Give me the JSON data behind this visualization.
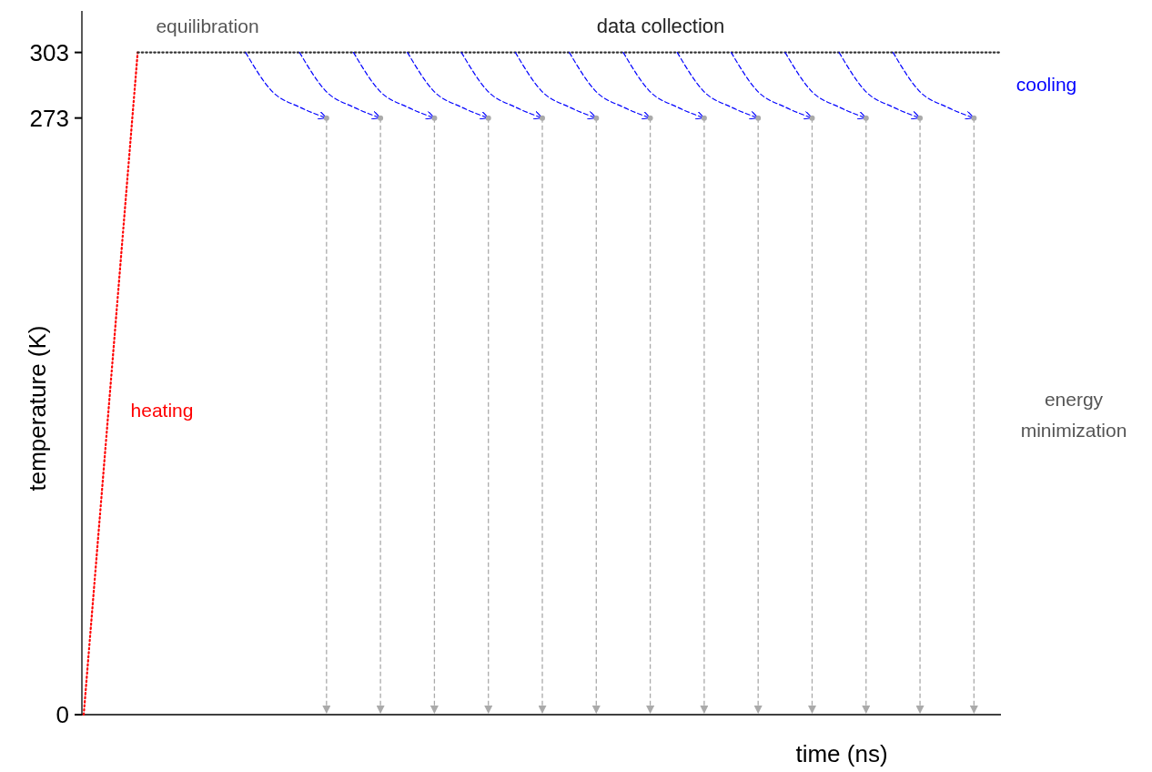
{
  "chart_data": {
    "type": "line",
    "xlabel": "time (ns)",
    "ylabel": "temperature (K)",
    "categories": [
      null,
      null,
      null,
      null,
      null,
      null,
      null,
      null,
      null,
      null,
      null,
      null,
      null,
      null,
      null,
      null,
      null,
      null,
      null,
      null,
      null,
      null,
      null,
      null,
      null,
      null,
      null,
      null,
      null,
      null,
      null,
      null,
      null,
      null,
      null
    ],
    "ylim": [
      0,
      322
    ],
    "yticks": [
      0,
      273,
      303
    ],
    "tick_labels": "y",
    "annotations": [
      "equilibration",
      "data collection",
      "heating",
      "cooling",
      "energy minimization"
    ],
    "series": [
      {
        "color": "#ff0000",
        "line_style": "dotted",
        "values": [
          0,
          null,
          303,
          null,
          null,
          null,
          null,
          null,
          null,
          null,
          null,
          null,
          null,
          null,
          null,
          null,
          null,
          null,
          null,
          null,
          null,
          null,
          null,
          null,
          null,
          null,
          null,
          null,
          null,
          null,
          null,
          null,
          null,
          null,
          null
        ]
      },
      {
        "color": "#333333",
        "line_style": "dotted",
        "values": [
          null,
          null,
          303,
          303,
          303,
          303,
          303,
          303,
          303,
          303,
          303,
          303,
          303,
          303,
          303,
          303,
          303,
          303,
          303,
          303,
          303,
          303,
          303,
          303,
          303,
          303,
          303,
          303,
          303,
          303,
          303,
          303,
          303,
          303,
          303
        ]
      },
      {
        "type": "lollipop",
        "color": "#aaaaaa",
        "line_style": "dashed",
        "values": [
          null,
          null,
          null,
          null,
          null,
          null,
          null,
          null,
          null,
          273,
          null,
          273,
          null,
          273,
          null,
          273,
          null,
          273,
          null,
          273,
          null,
          273,
          null,
          273,
          null,
          273,
          null,
          273,
          null,
          273,
          null,
          273,
          null,
          273,
          null
        ]
      },
      {
        "color": "#0000ff",
        "line_style": "dashed",
        "values": [
          null,
          null,
          null,
          null,
          null,
          null,
          303,
          285,
          278,
          273,
          null,
          null,
          null,
          null,
          null,
          null,
          null,
          null,
          null,
          null,
          null,
          null,
          null,
          null,
          null,
          null,
          null,
          null,
          null,
          null,
          null,
          null,
          null,
          null,
          null
        ]
      },
      {
        "color": "#0000ff",
        "line_style": "dashed",
        "values": [
          null,
          null,
          null,
          null,
          null,
          null,
          null,
          null,
          303,
          285,
          278,
          273,
          null,
          null,
          null,
          null,
          null,
          null,
          null,
          null,
          null,
          null,
          null,
          null,
          null,
          null,
          null,
          null,
          null,
          null,
          null,
          null,
          null,
          null,
          null
        ]
      },
      {
        "color": "#0000ff",
        "line_style": "dashed",
        "values": [
          null,
          null,
          null,
          null,
          null,
          null,
          null,
          null,
          null,
          null,
          303,
          285,
          278,
          273,
          null,
          null,
          null,
          null,
          null,
          null,
          null,
          null,
          null,
          null,
          null,
          null,
          null,
          null,
          null,
          null,
          null,
          null,
          null,
          null,
          null
        ]
      },
      {
        "color": "#0000ff",
        "line_style": "dashed",
        "values": [
          null,
          null,
          null,
          null,
          null,
          null,
          null,
          null,
          null,
          null,
          null,
          null,
          303,
          285,
          278,
          273,
          null,
          null,
          null,
          null,
          null,
          null,
          null,
          null,
          null,
          null,
          null,
          null,
          null,
          null,
          null,
          null,
          null,
          null,
          null
        ]
      },
      {
        "color": "#0000ff",
        "line_style": "dashed",
        "values": [
          null,
          null,
          null,
          null,
          null,
          null,
          null,
          null,
          null,
          null,
          null,
          null,
          null,
          null,
          303,
          285,
          278,
          273,
          null,
          null,
          null,
          null,
          null,
          null,
          null,
          null,
          null,
          null,
          null,
          null,
          null,
          null,
          null,
          null,
          null
        ]
      },
      {
        "color": "#0000ff",
        "line_style": "dashed",
        "values": [
          null,
          null,
          null,
          null,
          null,
          null,
          null,
          null,
          null,
          null,
          null,
          null,
          null,
          null,
          null,
          null,
          303,
          285,
          278,
          273,
          null,
          null,
          null,
          null,
          null,
          null,
          null,
          null,
          null,
          null,
          null,
          null,
          null,
          null,
          null
        ]
      },
      {
        "color": "#0000ff",
        "line_style": "dashed",
        "values": [
          null,
          null,
          null,
          null,
          null,
          null,
          null,
          null,
          null,
          null,
          null,
          null,
          null,
          null,
          null,
          null,
          null,
          null,
          303,
          285,
          278,
          273,
          null,
          null,
          null,
          null,
          null,
          null,
          null,
          null,
          null,
          null,
          null,
          null,
          null
        ]
      },
      {
        "color": "#0000ff",
        "line_style": "dashed",
        "values": [
          null,
          null,
          null,
          null,
          null,
          null,
          null,
          null,
          null,
          null,
          null,
          null,
          null,
          null,
          null,
          null,
          null,
          null,
          null,
          null,
          303,
          285,
          278,
          273,
          null,
          null,
          null,
          null,
          null,
          null,
          null,
          null,
          null,
          null,
          null
        ]
      },
      {
        "color": "#0000ff",
        "line_style": "dashed",
        "values": [
          null,
          null,
          null,
          null,
          null,
          null,
          null,
          null,
          null,
          null,
          null,
          null,
          null,
          null,
          null,
          null,
          null,
          null,
          null,
          null,
          null,
          null,
          303,
          285,
          278,
          273,
          null,
          null,
          null,
          null,
          null,
          null,
          null,
          null,
          null
        ]
      },
      {
        "color": "#0000ff",
        "line_style": "dashed",
        "values": [
          null,
          null,
          null,
          null,
          null,
          null,
          null,
          null,
          null,
          null,
          null,
          null,
          null,
          null,
          null,
          null,
          null,
          null,
          null,
          null,
          null,
          null,
          null,
          null,
          303,
          285,
          278,
          273,
          null,
          null,
          null,
          null,
          null,
          null,
          null
        ]
      },
      {
        "color": "#0000ff",
        "line_style": "dashed",
        "values": [
          null,
          null,
          null,
          null,
          null,
          null,
          null,
          null,
          null,
          null,
          null,
          null,
          null,
          null,
          null,
          null,
          null,
          null,
          null,
          null,
          null,
          null,
          null,
          null,
          null,
          null,
          303,
          285,
          278,
          273,
          null,
          null,
          null,
          null,
          null
        ]
      },
      {
        "color": "#0000ff",
        "line_style": "dashed",
        "values": [
          null,
          null,
          null,
          null,
          null,
          null,
          null,
          null,
          null,
          null,
          null,
          null,
          null,
          null,
          null,
          null,
          null,
          null,
          null,
          null,
          null,
          null,
          null,
          null,
          null,
          null,
          null,
          null,
          303,
          285,
          278,
          273,
          null,
          null,
          null
        ]
      },
      {
        "color": "#0000ff",
        "line_style": "dashed",
        "values": [
          null,
          null,
          null,
          null,
          null,
          null,
          null,
          null,
          null,
          null,
          null,
          null,
          null,
          null,
          null,
          null,
          null,
          null,
          null,
          null,
          null,
          null,
          null,
          null,
          null,
          null,
          null,
          null,
          null,
          null,
          303,
          285,
          278,
          273,
          null
        ]
      }
    ]
  }
}
